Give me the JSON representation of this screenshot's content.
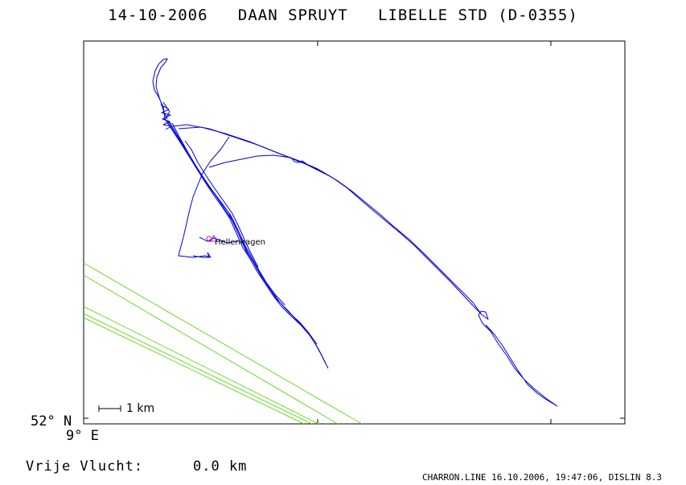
{
  "title": "14-10-2006   DAAN SPRUYT   LIBELLE STD (D-0355)",
  "latitude_label": "52° N",
  "longitude_label": "9° E",
  "scale_label": "1 km",
  "place_label": "Hellenhagen",
  "distance_label": "Vrije Vlucht:",
  "distance_value": "0.0 km",
  "footer": "CHARRON.LINE 16.10.2006, 19:47:06, DISLIN 8.3",
  "colors": {
    "track": "#0000dd",
    "airspace": "#66dd22",
    "place_marker": "#cc00cc",
    "frame": "#000000"
  }
}
